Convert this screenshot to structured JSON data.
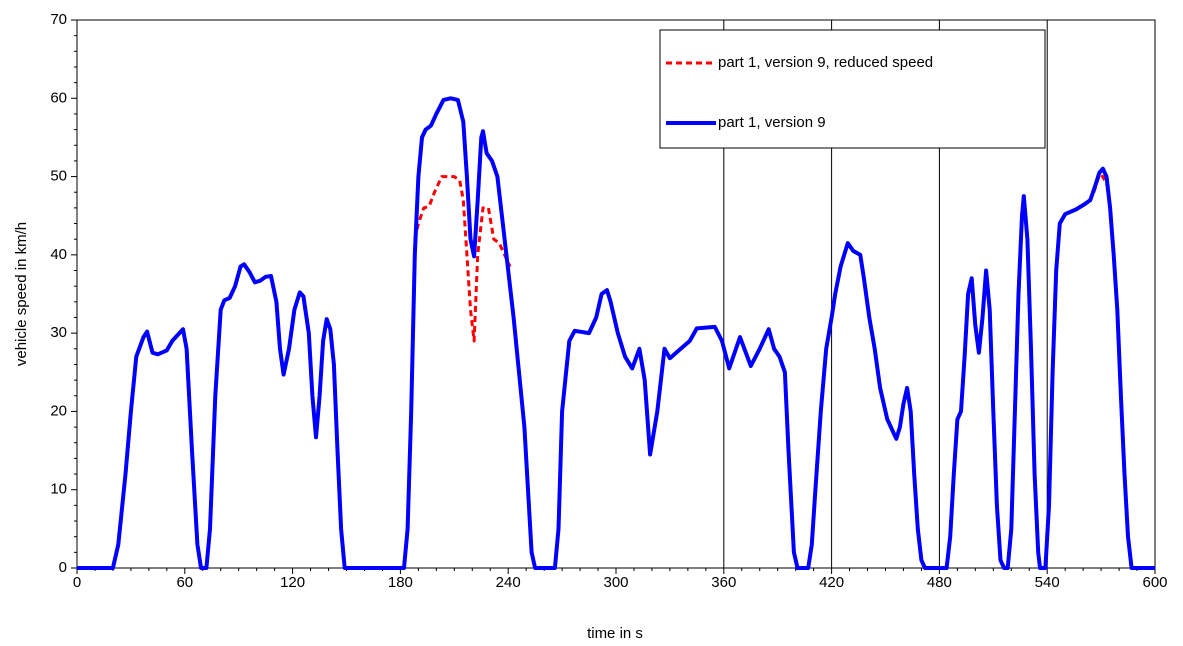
{
  "chart_data": {
    "type": "line",
    "xlabel": "time in s",
    "ylabel": "vehicle speed in km/h",
    "xlim": [
      0,
      600
    ],
    "ylim": [
      0,
      70
    ],
    "xticks": [
      0,
      60,
      120,
      180,
      240,
      300,
      360,
      420,
      480,
      540,
      600
    ],
    "yticks": [
      0,
      10,
      20,
      30,
      40,
      50,
      60,
      70
    ],
    "vertical_lines": [
      360,
      420,
      480,
      540
    ],
    "legend": "upper right",
    "series": [
      {
        "name": "part 1, version 9, reduced speed",
        "color": "#ff0000",
        "dashed": true,
        "x": [
          188,
          190,
          193,
          196,
          199,
          203,
          210,
          213,
          215,
          217,
          219,
          221,
          223,
          226,
          229,
          232,
          235,
          238,
          241,
          250,
          566,
          569,
          571,
          573
        ],
        "values": [
          42,
          44,
          46,
          46.2,
          48,
          50,
          50,
          49.5,
          47,
          40,
          33,
          29,
          40,
          46,
          46,
          42,
          41.5,
          40,
          38.5,
          null,
          48,
          50.2,
          50,
          49
        ]
      },
      {
        "name": "part 1, version 9",
        "color": "#0000ff",
        "dashed": false,
        "x": [
          0,
          20,
          23,
          27,
          30,
          33,
          37,
          39,
          42,
          45,
          50,
          53,
          57,
          59,
          61,
          64,
          67,
          69,
          72,
          74,
          77,
          80,
          82,
          85,
          88,
          91,
          93,
          96,
          99,
          102,
          105,
          108,
          111,
          113,
          115,
          118,
          121,
          124,
          126,
          129,
          131,
          133,
          135,
          137,
          139,
          141,
          143,
          145,
          147,
          149,
          182,
          184,
          186,
          188,
          190,
          192,
          194,
          197,
          200,
          204,
          208,
          212,
          215,
          217,
          219,
          221,
          223,
          225,
          226,
          228,
          231,
          234,
          237,
          240,
          243,
          246,
          249,
          251,
          253,
          255,
          266,
          268,
          270,
          274,
          277,
          285,
          289,
          292,
          295,
          297,
          301,
          305,
          309,
          313,
          316,
          319,
          323,
          327,
          330,
          336,
          341,
          345,
          355,
          359,
          363,
          369,
          375,
          380,
          385,
          388,
          391,
          394,
          396,
          399,
          401,
          407,
          409,
          411,
          414,
          417,
          420,
          422,
          425,
          429,
          432,
          436,
          438,
          441,
          444,
          447,
          451,
          453,
          456,
          458,
          460,
          462,
          464,
          466,
          468,
          470,
          472,
          484,
          486,
          488,
          490,
          492,
          494,
          496,
          498,
          500,
          502,
          504,
          506,
          508,
          510,
          512,
          514,
          516,
          518,
          520,
          522,
          524,
          526,
          527,
          529,
          531,
          533,
          535,
          536,
          539,
          541,
          543,
          545,
          547,
          550,
          556,
          561,
          564,
          567,
          569,
          571,
          573,
          575,
          577,
          579,
          581,
          583,
          585,
          587,
          600
        ],
        "values": [
          0,
          0,
          3,
          12,
          20,
          27,
          29.5,
          30.2,
          27.5,
          27.3,
          27.8,
          29,
          30,
          30.5,
          28,
          15,
          3,
          0,
          0,
          5,
          22,
          33,
          34.2,
          34.5,
          36,
          38.5,
          38.8,
          37.8,
          36.5,
          36.7,
          37.2,
          37.3,
          34,
          28,
          24.7,
          28,
          33,
          35.2,
          34.7,
          30,
          22,
          16.7,
          22,
          29,
          31.8,
          30.5,
          26,
          15,
          5,
          0,
          0,
          5,
          20,
          40,
          50,
          55,
          56,
          56.5,
          58,
          59.8,
          60,
          59.8,
          57,
          50,
          42,
          39.8,
          47,
          55,
          55.8,
          53,
          52,
          50,
          44,
          38,
          32,
          25,
          18,
          10,
          2,
          0,
          0,
          5,
          20,
          29,
          30.3,
          30,
          32,
          35,
          35.5,
          34,
          30,
          27,
          25.5,
          28,
          24,
          14.5,
          20,
          28,
          26.8,
          28,
          29,
          30.6,
          30.8,
          29,
          25.5,
          29.5,
          25.8,
          28,
          30.5,
          28,
          27,
          25,
          15,
          2,
          0,
          0,
          3,
          10,
          20,
          28,
          32,
          35,
          38.5,
          41.5,
          40.5,
          40,
          37,
          32,
          28,
          23,
          19,
          18,
          16.5,
          18,
          21,
          23,
          20,
          12,
          5,
          1,
          0,
          0,
          4,
          12,
          19,
          20,
          27,
          35,
          37,
          31,
          27.5,
          32,
          38,
          33,
          20,
          8,
          1,
          0,
          0,
          5,
          20,
          35,
          45,
          47.5,
          42,
          28,
          12,
          2,
          0,
          0,
          8,
          25,
          38,
          44,
          45.2,
          45.8,
          46.5,
          47,
          49,
          50.5,
          51,
          50,
          46,
          40,
          33,
          22,
          12,
          4,
          0,
          0
        ]
      }
    ]
  }
}
